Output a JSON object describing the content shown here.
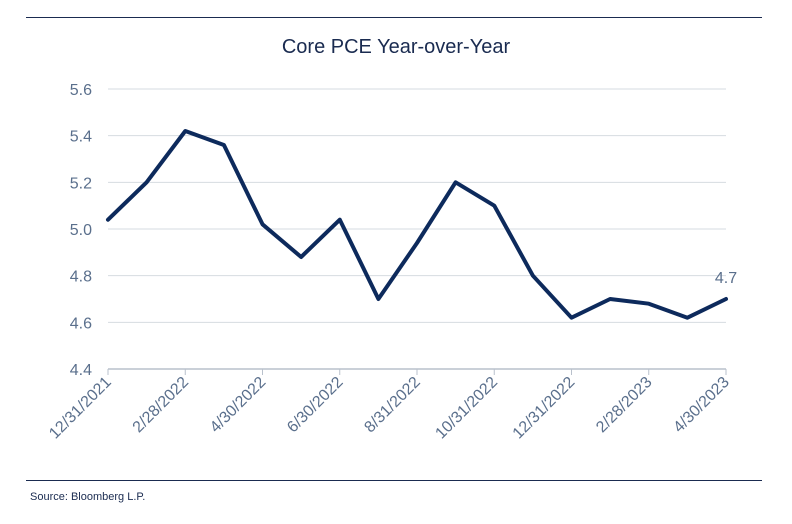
{
  "chart_data": {
    "type": "line",
    "title": "Core PCE Year-over-Year",
    "xlabel": "",
    "ylabel": "",
    "ylim": [
      4.4,
      5.6
    ],
    "yticks": [
      "4.4",
      "4.6",
      "4.8",
      "5.0",
      "5.2",
      "5.4",
      "5.6"
    ],
    "grid": true,
    "x": [
      "12/31/2021",
      "1/31/2022",
      "2/28/2022",
      "3/31/2022",
      "4/30/2022",
      "5/31/2022",
      "6/30/2022",
      "7/31/2022",
      "8/31/2022",
      "9/30/2022",
      "10/31/2022",
      "11/30/2022",
      "12/31/2022",
      "1/31/2023",
      "2/28/2023",
      "3/31/2023",
      "4/30/2023"
    ],
    "xtick_labels": [
      "12/31/2021",
      "2/28/2022",
      "4/30/2022",
      "6/30/2022",
      "8/31/2022",
      "10/31/2022",
      "12/31/2022",
      "2/28/2023",
      "4/30/2023"
    ],
    "series": [
      {
        "color": "#0d2a5c",
        "values": [
          5.04,
          5.2,
          5.42,
          5.36,
          5.02,
          4.88,
          5.04,
          4.7,
          4.94,
          5.2,
          5.1,
          4.8,
          4.62,
          4.7,
          4.68,
          4.62,
          4.7
        ]
      }
    ],
    "annotations": [
      {
        "text": "4.7",
        "point": 16
      }
    ],
    "source": "Source: Bloomberg L.P."
  }
}
